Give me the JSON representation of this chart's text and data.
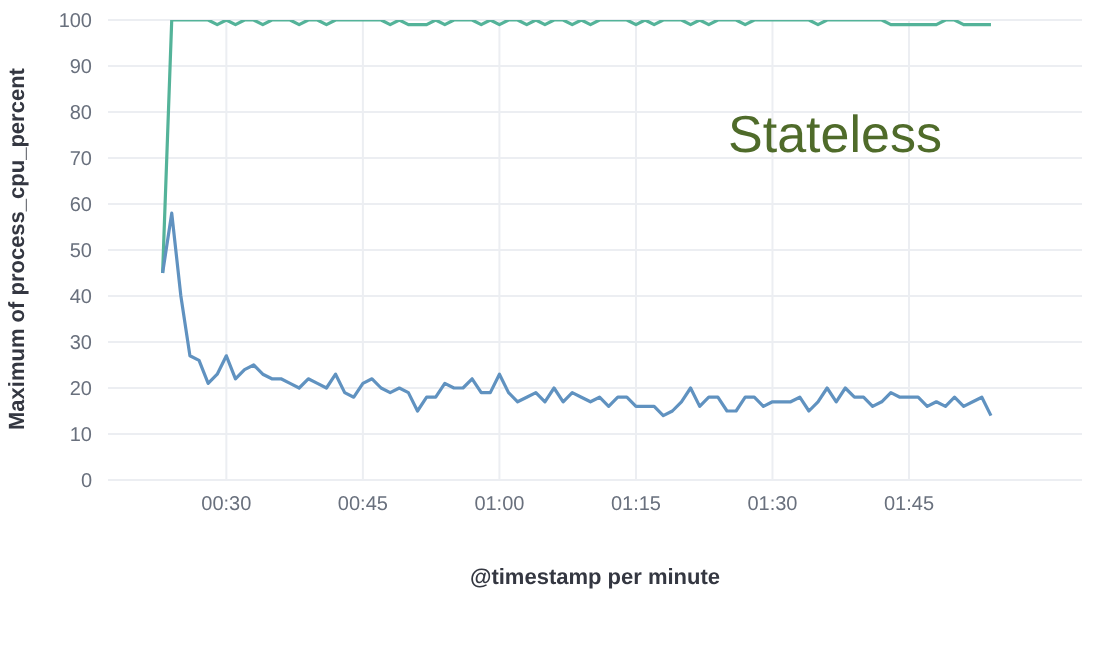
{
  "chart_data": {
    "type": "line",
    "xlabel": "@timestamp per minute",
    "ylabel": "Maximum of process_cpu_percent",
    "annotations": [
      "Stateless"
    ],
    "x": [
      0.3833,
      0.4,
      0.4167,
      0.4333,
      0.45,
      0.4667,
      0.4833,
      0.5,
      0.5167,
      0.5333,
      0.55,
      0.5667,
      0.5833,
      0.6,
      0.6167,
      0.6333,
      0.65,
      0.6667,
      0.6833,
      0.7,
      0.7167,
      0.7333,
      0.75,
      0.7667,
      0.7833,
      0.8,
      0.8167,
      0.8333,
      0.85,
      0.8667,
      0.8833,
      0.9,
      0.9167,
      0.9333,
      0.95,
      0.9667,
      0.9833,
      1,
      1.0167,
      1.0333,
      1.05,
      1.0667,
      1.0833,
      1.1,
      1.1167,
      1.1333,
      1.15,
      1.1667,
      1.1833,
      1.2,
      1.2167,
      1.2333,
      1.25,
      1.2667,
      1.2833,
      1.3,
      1.3167,
      1.3333,
      1.35,
      1.3667,
      1.3833,
      1.4,
      1.4167,
      1.4333,
      1.45,
      1.4667,
      1.4833,
      1.5,
      1.5167,
      1.5333,
      1.55,
      1.5667,
      1.5833,
      1.6,
      1.6167,
      1.6333,
      1.65,
      1.6667,
      1.6833,
      1.7,
      1.7167,
      1.7333,
      1.75,
      1.7667,
      1.7833,
      1.8,
      1.8167,
      1.8333,
      1.85,
      1.8667,
      1.8833,
      1.9
    ],
    "series": [
      {
        "color": "#54b399",
        "values": [
          45,
          100,
          100,
          100,
          100,
          100,
          99,
          100,
          99,
          100,
          100,
          99,
          100,
          100,
          100,
          99,
          100,
          100,
          99,
          100,
          100,
          100,
          100,
          100,
          100,
          99,
          100,
          99,
          99,
          99,
          100,
          99,
          100,
          100,
          100,
          99,
          100,
          99,
          100,
          100,
          99,
          100,
          99,
          100,
          100,
          99,
          100,
          99,
          100,
          100,
          100,
          100,
          99,
          100,
          99,
          100,
          100,
          100,
          99,
          100,
          99,
          100,
          100,
          100,
          99,
          100,
          100,
          100,
          100,
          100,
          100,
          100,
          99,
          100,
          100,
          100,
          100,
          100,
          100,
          100,
          99,
          99,
          99,
          99,
          99,
          99,
          100,
          100,
          99,
          99,
          99,
          99
        ]
      },
      {
        "color": "#6092c0",
        "values": [
          45,
          58,
          40,
          27,
          26,
          21,
          23,
          27,
          22,
          24,
          25,
          23,
          22,
          22,
          21,
          20,
          22,
          21,
          20,
          23,
          19,
          18,
          21,
          22,
          20,
          19,
          20,
          19,
          15,
          18,
          18,
          21,
          20,
          20,
          22,
          19,
          19,
          23,
          19,
          17,
          18,
          19,
          17,
          20,
          17,
          19,
          18,
          17,
          18,
          16,
          18,
          18,
          16,
          16,
          16,
          14,
          15,
          17,
          20,
          16,
          18,
          18,
          15,
          15,
          18,
          18,
          16,
          17,
          17,
          17,
          18,
          15,
          17,
          20,
          17,
          20,
          18,
          18,
          16,
          17,
          19,
          18,
          18,
          18,
          16,
          17,
          16,
          18,
          16,
          17,
          18,
          14
        ]
      }
    ],
    "xlim": [
      0.2833,
      2.0667
    ],
    "xticks": [
      {
        "value": 0.5,
        "label": "00:30"
      },
      {
        "value": 0.75,
        "label": "00:45"
      },
      {
        "value": 1,
        "label": "01:00"
      },
      {
        "value": 1.25,
        "label": "01:15"
      },
      {
        "value": 1.5,
        "label": "01:30"
      },
      {
        "value": 1.75,
        "label": "01:45"
      }
    ],
    "ylim": [
      0,
      100
    ],
    "yticks": [
      0,
      10,
      20,
      30,
      40,
      50,
      60,
      70,
      80,
      90,
      100
    ],
    "grid": true,
    "legend": false,
    "marker": "none",
    "line_style": "solid"
  }
}
